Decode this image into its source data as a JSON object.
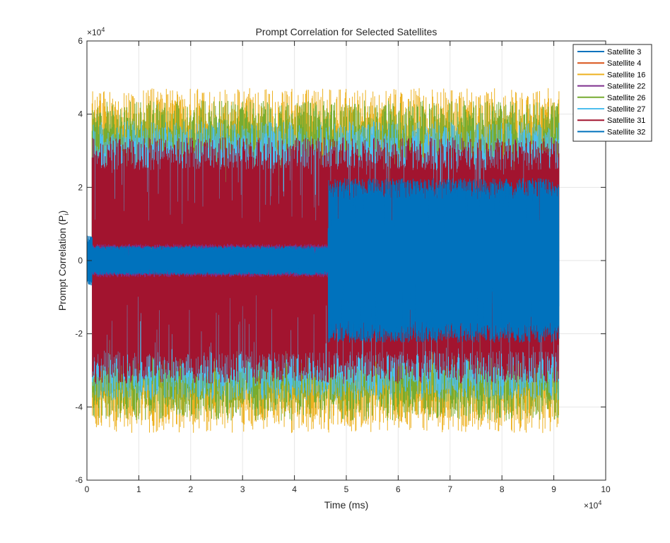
{
  "chart_data": {
    "type": "line",
    "title": "Prompt Correlation for Selected Satellites",
    "xlabel": "Time (ms)",
    "ylabel": "Prompt Correlation (P",
    "ylabel_subscript": "i",
    "ylabel_close": ")",
    "xlim": [
      0,
      100000
    ],
    "ylim": [
      -60000,
      60000
    ],
    "x_multiplier": "×10",
    "x_multiplier_exp": "4",
    "y_multiplier": "×10",
    "y_multiplier_exp": "4",
    "xticks": [
      0,
      10000,
      20000,
      30000,
      40000,
      50000,
      60000,
      70000,
      80000,
      90000,
      100000
    ],
    "xtick_labels": [
      "0",
      "1",
      "2",
      "3",
      "4",
      "5",
      "6",
      "7",
      "8",
      "9",
      "10"
    ],
    "yticks": [
      -60000,
      -40000,
      -20000,
      0,
      20000,
      40000,
      60000
    ],
    "ytick_labels": [
      "-6",
      "-4",
      "-2",
      "0",
      "2",
      "4",
      "6"
    ],
    "grid": true,
    "legend_position": "top-right",
    "data_range_x": [
      0,
      91000
    ],
    "series": [
      {
        "name": "Satellite 3",
        "color": "#0072BD",
        "segments": [
          {
            "x": [
              0,
              1000
            ],
            "amp": 6000
          },
          {
            "x": [
              1000,
              46500
            ],
            "amp": 3500
          },
          {
            "x": [
              46500,
              91000
            ],
            "amp": 20000
          }
        ]
      },
      {
        "name": "Satellite 4",
        "color": "#D95319",
        "segments": [
          {
            "x": [
              0,
              91000
            ],
            "amp": 3000
          }
        ]
      },
      {
        "name": "Satellite 16",
        "color": "#EDB120",
        "segments": [
          {
            "x": [
              0,
              1000
            ],
            "amp": 4000
          },
          {
            "x": [
              1000,
              91000
            ],
            "amp": 42000
          }
        ]
      },
      {
        "name": "Satellite 22",
        "color": "#7E2F8E",
        "segments": [
          {
            "x": [
              0,
              91000
            ],
            "amp": 4000
          }
        ]
      },
      {
        "name": "Satellite 26",
        "color": "#77AC30",
        "segments": [
          {
            "x": [
              0,
              1000
            ],
            "amp": 4000
          },
          {
            "x": [
              1000,
              91000
            ],
            "amp": 39000
          }
        ]
      },
      {
        "name": "Satellite 27",
        "color": "#4DBEEE",
        "segments": [
          {
            "x": [
              0,
              1000
            ],
            "amp": 4000
          },
          {
            "x": [
              1000,
              91000
            ],
            "amp": 34000
          }
        ]
      },
      {
        "name": "Satellite 31",
        "color": "#A2142F",
        "segments": [
          {
            "x": [
              0,
              1000
            ],
            "amp": 5000
          },
          {
            "x": [
              1000,
              91000
            ],
            "amp": 30000
          }
        ]
      },
      {
        "name": "Satellite 32",
        "color": "#0072BD",
        "segments": [
          {
            "x": [
              0,
              1000
            ],
            "amp": 6000
          },
          {
            "x": [
              1000,
              46500
            ],
            "amp": 3500
          },
          {
            "x": [
              46500,
              91000
            ],
            "amp": 20000
          }
        ]
      }
    ]
  }
}
